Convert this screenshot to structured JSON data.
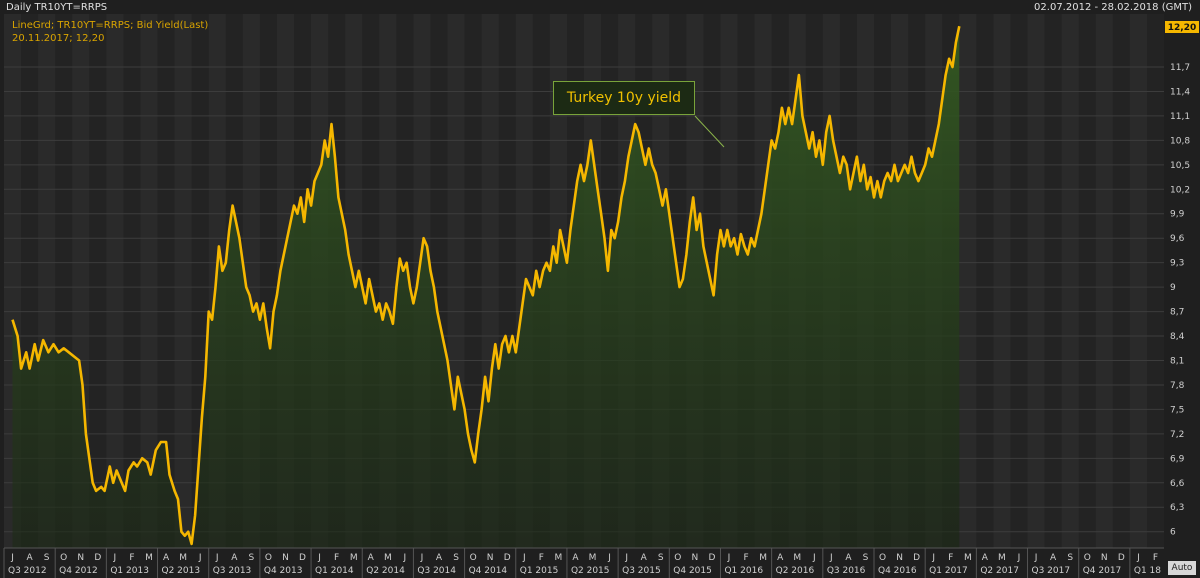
{
  "header": {
    "title": "Daily TR10YT=RRPS",
    "date_range": "02.07.2012 - 28.02.2018 (GMT)",
    "legend_line1": "LineGrd; TR10YT=RRPS; Bid Yield(Last)",
    "legend_line2": "20.11.2017; 12,20",
    "auto_button": "Auto"
  },
  "colors": {
    "line": "#f5b700",
    "fill_top": "#2f4a1f",
    "background": "#232323",
    "grid": "#3a3a3a",
    "last_value_tag": "#f5b700"
  },
  "chart_data": {
    "type": "line",
    "title": "",
    "series": [
      {
        "name": "Turkey 10y yield",
        "x_unit": "months since Jul 2012",
        "points": [
          [
            0.0,
            8.6
          ],
          [
            0.3,
            8.4
          ],
          [
            0.5,
            8.0
          ],
          [
            0.8,
            8.2
          ],
          [
            1.0,
            8.0
          ],
          [
            1.3,
            8.3
          ],
          [
            1.5,
            8.1
          ],
          [
            1.8,
            8.35
          ],
          [
            2.1,
            8.2
          ],
          [
            2.4,
            8.3
          ],
          [
            2.7,
            8.2
          ],
          [
            3.0,
            8.25
          ],
          [
            3.3,
            8.2
          ],
          [
            3.6,
            8.15
          ],
          [
            3.9,
            8.1
          ],
          [
            4.1,
            7.8
          ],
          [
            4.3,
            7.2
          ],
          [
            4.5,
            6.9
          ],
          [
            4.7,
            6.6
          ],
          [
            4.9,
            6.5
          ],
          [
            5.2,
            6.55
          ],
          [
            5.4,
            6.5
          ],
          [
            5.7,
            6.8
          ],
          [
            5.9,
            6.6
          ],
          [
            6.1,
            6.75
          ],
          [
            6.4,
            6.6
          ],
          [
            6.6,
            6.5
          ],
          [
            6.8,
            6.75
          ],
          [
            7.1,
            6.85
          ],
          [
            7.3,
            6.8
          ],
          [
            7.6,
            6.9
          ],
          [
            7.9,
            6.85
          ],
          [
            8.1,
            6.7
          ],
          [
            8.4,
            7.0
          ],
          [
            8.7,
            7.1
          ],
          [
            9.0,
            7.1
          ],
          [
            9.2,
            6.7
          ],
          [
            9.5,
            6.5
          ],
          [
            9.7,
            6.4
          ],
          [
            9.9,
            6.0
          ],
          [
            10.1,
            5.95
          ],
          [
            10.3,
            6.0
          ],
          [
            10.5,
            5.85
          ],
          [
            10.7,
            6.2
          ],
          [
            10.9,
            6.8
          ],
          [
            11.1,
            7.4
          ],
          [
            11.3,
            7.9
          ],
          [
            11.5,
            8.7
          ],
          [
            11.7,
            8.6
          ],
          [
            11.9,
            9.0
          ],
          [
            12.1,
            9.5
          ],
          [
            12.3,
            9.2
          ],
          [
            12.5,
            9.3
          ],
          [
            12.7,
            9.7
          ],
          [
            12.9,
            10.0
          ],
          [
            13.1,
            9.8
          ],
          [
            13.3,
            9.6
          ],
          [
            13.5,
            9.3
          ],
          [
            13.7,
            9.0
          ],
          [
            13.9,
            8.9
          ],
          [
            14.1,
            8.7
          ],
          [
            14.3,
            8.8
          ],
          [
            14.5,
            8.6
          ],
          [
            14.7,
            8.8
          ],
          [
            14.9,
            8.5
          ],
          [
            15.1,
            8.25
          ],
          [
            15.3,
            8.7
          ],
          [
            15.5,
            8.9
          ],
          [
            15.7,
            9.2
          ],
          [
            15.9,
            9.4
          ],
          [
            16.1,
            9.6
          ],
          [
            16.3,
            9.8
          ],
          [
            16.5,
            10.0
          ],
          [
            16.7,
            9.9
          ],
          [
            16.9,
            10.1
          ],
          [
            17.1,
            9.8
          ],
          [
            17.3,
            10.2
          ],
          [
            17.5,
            10.0
          ],
          [
            17.7,
            10.3
          ],
          [
            17.9,
            10.4
          ],
          [
            18.1,
            10.5
          ],
          [
            18.3,
            10.8
          ],
          [
            18.5,
            10.6
          ],
          [
            18.7,
            11.0
          ],
          [
            18.9,
            10.6
          ],
          [
            19.1,
            10.1
          ],
          [
            19.3,
            9.9
          ],
          [
            19.5,
            9.7
          ],
          [
            19.7,
            9.4
          ],
          [
            19.9,
            9.2
          ],
          [
            20.1,
            9.0
          ],
          [
            20.3,
            9.2
          ],
          [
            20.5,
            9.0
          ],
          [
            20.7,
            8.8
          ],
          [
            20.9,
            9.1
          ],
          [
            21.1,
            8.9
          ],
          [
            21.3,
            8.7
          ],
          [
            21.5,
            8.8
          ],
          [
            21.7,
            8.6
          ],
          [
            21.9,
            8.8
          ],
          [
            22.1,
            8.7
          ],
          [
            22.3,
            8.55
          ],
          [
            22.5,
            9.0
          ],
          [
            22.7,
            9.35
          ],
          [
            22.9,
            9.2
          ],
          [
            23.1,
            9.3
          ],
          [
            23.3,
            9.0
          ],
          [
            23.5,
            8.8
          ],
          [
            23.7,
            9.0
          ],
          [
            23.9,
            9.3
          ],
          [
            24.1,
            9.6
          ],
          [
            24.3,
            9.5
          ],
          [
            24.5,
            9.2
          ],
          [
            24.7,
            9.0
          ],
          [
            24.9,
            8.7
          ],
          [
            25.1,
            8.5
          ],
          [
            25.3,
            8.3
          ],
          [
            25.5,
            8.1
          ],
          [
            25.7,
            7.8
          ],
          [
            25.9,
            7.5
          ],
          [
            26.1,
            7.9
          ],
          [
            26.3,
            7.7
          ],
          [
            26.5,
            7.5
          ],
          [
            26.7,
            7.2
          ],
          [
            26.9,
            7.0
          ],
          [
            27.1,
            6.85
          ],
          [
            27.3,
            7.2
          ],
          [
            27.5,
            7.5
          ],
          [
            27.7,
            7.9
          ],
          [
            27.9,
            7.6
          ],
          [
            28.1,
            8.0
          ],
          [
            28.3,
            8.3
          ],
          [
            28.5,
            8.0
          ],
          [
            28.7,
            8.3
          ],
          [
            28.9,
            8.4
          ],
          [
            29.1,
            8.2
          ],
          [
            29.3,
            8.4
          ],
          [
            29.5,
            8.2
          ],
          [
            29.7,
            8.5
          ],
          [
            29.9,
            8.8
          ],
          [
            30.1,
            9.1
          ],
          [
            30.3,
            9.0
          ],
          [
            30.5,
            8.9
          ],
          [
            30.7,
            9.2
          ],
          [
            30.9,
            9.0
          ],
          [
            31.1,
            9.2
          ],
          [
            31.3,
            9.3
          ],
          [
            31.5,
            9.2
          ],
          [
            31.7,
            9.5
          ],
          [
            31.9,
            9.3
          ],
          [
            32.1,
            9.7
          ],
          [
            32.3,
            9.5
          ],
          [
            32.5,
            9.3
          ],
          [
            32.7,
            9.7
          ],
          [
            32.9,
            10.0
          ],
          [
            33.1,
            10.3
          ],
          [
            33.3,
            10.5
          ],
          [
            33.5,
            10.3
          ],
          [
            33.7,
            10.5
          ],
          [
            33.9,
            10.8
          ],
          [
            34.1,
            10.5
          ],
          [
            34.3,
            10.2
          ],
          [
            34.5,
            9.9
          ],
          [
            34.7,
            9.6
          ],
          [
            34.9,
            9.2
          ],
          [
            35.1,
            9.7
          ],
          [
            35.3,
            9.6
          ],
          [
            35.5,
            9.8
          ],
          [
            35.7,
            10.1
          ],
          [
            35.9,
            10.3
          ],
          [
            36.1,
            10.6
          ],
          [
            36.3,
            10.8
          ],
          [
            36.5,
            11.0
          ],
          [
            36.7,
            10.9
          ],
          [
            36.9,
            10.7
          ],
          [
            37.1,
            10.5
          ],
          [
            37.3,
            10.7
          ],
          [
            37.5,
            10.5
          ],
          [
            37.7,
            10.4
          ],
          [
            37.9,
            10.2
          ],
          [
            38.1,
            10.0
          ],
          [
            38.3,
            10.2
          ],
          [
            38.5,
            9.9
          ],
          [
            38.7,
            9.6
          ],
          [
            38.9,
            9.3
          ],
          [
            39.1,
            9.0
          ],
          [
            39.3,
            9.1
          ],
          [
            39.5,
            9.4
          ],
          [
            39.7,
            9.8
          ],
          [
            39.9,
            10.1
          ],
          [
            40.1,
            9.7
          ],
          [
            40.3,
            9.9
          ],
          [
            40.5,
            9.5
          ],
          [
            40.7,
            9.3
          ],
          [
            40.9,
            9.1
          ],
          [
            41.1,
            8.9
          ],
          [
            41.3,
            9.4
          ],
          [
            41.5,
            9.7
          ],
          [
            41.7,
            9.5
          ],
          [
            41.9,
            9.7
          ],
          [
            42.1,
            9.5
          ],
          [
            42.3,
            9.6
          ],
          [
            42.5,
            9.4
          ],
          [
            42.7,
            9.65
          ],
          [
            42.9,
            9.5
          ],
          [
            43.1,
            9.4
          ],
          [
            43.3,
            9.6
          ],
          [
            43.5,
            9.5
          ],
          [
            43.7,
            9.7
          ],
          [
            43.9,
            9.9
          ],
          [
            44.1,
            10.2
          ],
          [
            44.3,
            10.5
          ],
          [
            44.5,
            10.8
          ],
          [
            44.7,
            10.7
          ],
          [
            44.9,
            10.9
          ],
          [
            45.1,
            11.2
          ],
          [
            45.3,
            11.0
          ],
          [
            45.5,
            11.2
          ],
          [
            45.7,
            11.0
          ],
          [
            45.9,
            11.3
          ],
          [
            46.1,
            11.6
          ],
          [
            46.3,
            11.1
          ],
          [
            46.5,
            10.9
          ],
          [
            46.7,
            10.7
          ],
          [
            46.9,
            10.9
          ],
          [
            47.1,
            10.6
          ],
          [
            47.3,
            10.8
          ],
          [
            47.5,
            10.5
          ],
          [
            47.7,
            10.9
          ],
          [
            47.9,
            11.1
          ],
          [
            48.1,
            10.8
          ],
          [
            48.3,
            10.6
          ],
          [
            48.5,
            10.4
          ],
          [
            48.7,
            10.6
          ],
          [
            48.9,
            10.5
          ],
          [
            49.1,
            10.2
          ],
          [
            49.3,
            10.4
          ],
          [
            49.5,
            10.6
          ],
          [
            49.7,
            10.3
          ],
          [
            49.9,
            10.5
          ],
          [
            50.1,
            10.2
          ],
          [
            50.3,
            10.35
          ],
          [
            50.5,
            10.1
          ],
          [
            50.7,
            10.3
          ],
          [
            50.9,
            10.1
          ],
          [
            51.1,
            10.3
          ],
          [
            51.3,
            10.4
          ],
          [
            51.5,
            10.3
          ],
          [
            51.7,
            10.5
          ],
          [
            51.9,
            10.3
          ],
          [
            52.1,
            10.4
          ],
          [
            52.3,
            10.5
          ],
          [
            52.5,
            10.4
          ],
          [
            52.7,
            10.6
          ],
          [
            52.9,
            10.4
          ],
          [
            53.1,
            10.3
          ],
          [
            53.3,
            10.4
          ],
          [
            53.5,
            10.5
          ],
          [
            53.7,
            10.7
          ],
          [
            53.9,
            10.6
          ],
          [
            54.1,
            10.8
          ],
          [
            54.3,
            11.0
          ],
          [
            54.5,
            11.3
          ],
          [
            54.7,
            11.6
          ],
          [
            54.9,
            11.8
          ],
          [
            55.1,
            11.7
          ],
          [
            55.3,
            12.0
          ],
          [
            55.5,
            12.2
          ]
        ]
      }
    ],
    "x_categories_months": [
      "J",
      "A",
      "S",
      "O",
      "N",
      "D",
      "J",
      "F",
      "M",
      "A",
      "M",
      "J",
      "J",
      "A",
      "S",
      "O",
      "N",
      "D",
      "J",
      "F",
      "M",
      "A",
      "M",
      "J",
      "J",
      "A",
      "S",
      "O",
      "N",
      "D",
      "J",
      "F",
      "M",
      "A",
      "M",
      "J",
      "J",
      "A",
      "S",
      "O",
      "N",
      "D",
      "J",
      "F",
      "M",
      "A",
      "M",
      "J",
      "J",
      "A",
      "S",
      "O",
      "N",
      "D",
      "J",
      "F",
      "M",
      "A",
      "M",
      "J",
      "J",
      "A",
      "S",
      "O",
      "N",
      "D",
      "J",
      "F"
    ],
    "x_categories_quarters": [
      "Q3 2012",
      "Q4 2012",
      "Q1 2013",
      "Q2 2013",
      "Q3 2013",
      "Q4 2013",
      "Q1 2014",
      "Q2 2014",
      "Q3 2014",
      "Q4 2014",
      "Q1 2015",
      "Q2 2015",
      "Q3 2015",
      "Q4 2015",
      "Q1 2016",
      "Q2 2016",
      "Q3 2016",
      "Q4 2016",
      "Q1 2017",
      "Q2 2017",
      "Q3 2017",
      "Q4 2017",
      "Q1 18"
    ],
    "y_ticks": [
      "6",
      "6,3",
      "6,6",
      "6,9",
      "7,2",
      "7,5",
      "7,8",
      "8,1",
      "8,4",
      "8,7",
      "9",
      "9,3",
      "9,6",
      "9,9",
      "10,2",
      "10,5",
      "10,8",
      "11,1",
      "11,4",
      "11,7"
    ],
    "ylim": [
      5.8,
      12.35
    ],
    "last_value_label": "12,20",
    "annotation": "Turkey 10y yield",
    "grid": true
  }
}
